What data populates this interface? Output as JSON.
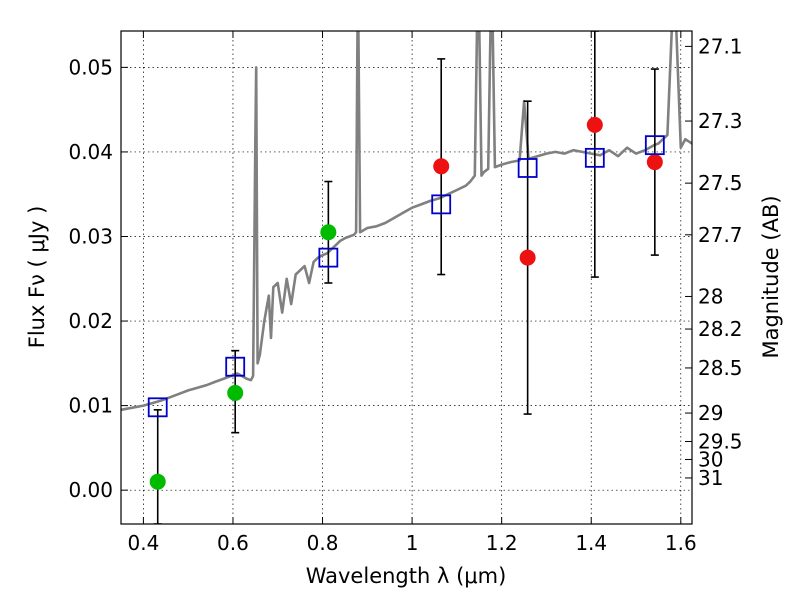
{
  "chart_data": {
    "type": "scatter",
    "xlabel": "Wavelength  λ (μm)",
    "ylabel": "Flux  Fν  ( μJy )",
    "y2label": "Magnitude (AB)",
    "xlim": [
      0.35,
      1.625
    ],
    "ylim": [
      -0.004,
      0.0543
    ],
    "grid": true,
    "x_ticks": [
      {
        "v": 0.4,
        "label": "0.4"
      },
      {
        "v": 0.6,
        "label": "0.6"
      },
      {
        "v": 0.8,
        "label": "0.8"
      },
      {
        "v": 1.0,
        "label": "1"
      },
      {
        "v": 1.2,
        "label": "1.2"
      },
      {
        "v": 1.4,
        "label": "1.4"
      },
      {
        "v": 1.6,
        "label": "1.6"
      }
    ],
    "y_ticks": [
      {
        "v": 0.0,
        "label": "0.00"
      },
      {
        "v": 0.01,
        "label": "0.01"
      },
      {
        "v": 0.02,
        "label": "0.02"
      },
      {
        "v": 0.03,
        "label": "0.03"
      },
      {
        "v": 0.04,
        "label": "0.04"
      },
      {
        "v": 0.05,
        "label": "0.05"
      }
    ],
    "mag_ticks": [
      {
        "mag": 27.1,
        "label": "27.1"
      },
      {
        "mag": 27.3,
        "label": "27.3"
      },
      {
        "mag": 27.5,
        "label": "27.5"
      },
      {
        "mag": 27.7,
        "label": "27.7"
      },
      {
        "mag": 28.0,
        "label": "28"
      },
      {
        "mag": 28.2,
        "label": "28.2"
      },
      {
        "mag": 28.5,
        "label": "28.5"
      },
      {
        "mag": 29.0,
        "label": "29"
      },
      {
        "mag": 29.5,
        "label": "29.5"
      },
      {
        "mag": 30.0,
        "label": "30"
      },
      {
        "mag": 31.0,
        "label": "31"
      }
    ],
    "series": [
      {
        "kind": "spectrum",
        "color": "#808080",
        "points": [
          [
            0.35,
            0.0095
          ],
          [
            0.38,
            0.0098
          ],
          [
            0.4,
            0.01
          ],
          [
            0.42,
            0.0103
          ],
          [
            0.44,
            0.0106
          ],
          [
            0.46,
            0.011
          ],
          [
            0.48,
            0.0114
          ],
          [
            0.5,
            0.0118
          ],
          [
            0.52,
            0.0121
          ],
          [
            0.54,
            0.0124
          ],
          [
            0.56,
            0.0128
          ],
          [
            0.58,
            0.0132
          ],
          [
            0.6,
            0.0136
          ],
          [
            0.61,
            0.0138
          ],
          [
            0.62,
            0.0135
          ],
          [
            0.63,
            0.0132
          ],
          [
            0.64,
            0.013
          ],
          [
            0.645,
            0.0135
          ],
          [
            0.65,
            0.042
          ],
          [
            0.652,
            0.05
          ],
          [
            0.655,
            0.015
          ],
          [
            0.66,
            0.016
          ],
          [
            0.67,
            0.02
          ],
          [
            0.68,
            0.023
          ],
          [
            0.685,
            0.018
          ],
          [
            0.69,
            0.024
          ],
          [
            0.7,
            0.0245
          ],
          [
            0.71,
            0.021
          ],
          [
            0.72,
            0.025
          ],
          [
            0.73,
            0.022
          ],
          [
            0.74,
            0.0255
          ],
          [
            0.75,
            0.026
          ],
          [
            0.76,
            0.0265
          ],
          [
            0.77,
            0.0245
          ],
          [
            0.78,
            0.027
          ],
          [
            0.79,
            0.0275
          ],
          [
            0.8,
            0.0278
          ],
          [
            0.81,
            0.028
          ],
          [
            0.82,
            0.0285
          ],
          [
            0.83,
            0.029
          ],
          [
            0.84,
            0.0295
          ],
          [
            0.85,
            0.0298
          ],
          [
            0.86,
            0.03
          ],
          [
            0.87,
            0.0302
          ],
          [
            0.875,
            0.0305
          ],
          [
            0.878,
            0.0545
          ],
          [
            0.88,
            0.0545
          ],
          [
            0.884,
            0.0305
          ],
          [
            0.9,
            0.031
          ],
          [
            0.92,
            0.0312
          ],
          [
            0.94,
            0.0316
          ],
          [
            0.96,
            0.0322
          ],
          [
            0.98,
            0.0328
          ],
          [
            1.0,
            0.0334
          ],
          [
            1.02,
            0.0338
          ],
          [
            1.04,
            0.0342
          ],
          [
            1.06,
            0.0345
          ],
          [
            1.08,
            0.035
          ],
          [
            1.1,
            0.0355
          ],
          [
            1.12,
            0.036
          ],
          [
            1.13,
            0.0365
          ],
          [
            1.14,
            0.0372
          ],
          [
            1.145,
            0.0545
          ],
          [
            1.15,
            0.0545
          ],
          [
            1.155,
            0.0372
          ],
          [
            1.16,
            0.0376
          ],
          [
            1.17,
            0.038
          ],
          [
            1.175,
            0.0545
          ],
          [
            1.18,
            0.0545
          ],
          [
            1.185,
            0.0382
          ],
          [
            1.2,
            0.0385
          ],
          [
            1.22,
            0.0388
          ],
          [
            1.24,
            0.039
          ],
          [
            1.25,
            0.046
          ],
          [
            1.26,
            0.0392
          ],
          [
            1.28,
            0.0395
          ],
          [
            1.3,
            0.0398
          ],
          [
            1.32,
            0.04
          ],
          [
            1.34,
            0.0398
          ],
          [
            1.36,
            0.0402
          ],
          [
            1.38,
            0.04
          ],
          [
            1.4,
            0.0398
          ],
          [
            1.42,
            0.0396
          ],
          [
            1.44,
            0.0402
          ],
          [
            1.46,
            0.0395
          ],
          [
            1.48,
            0.0405
          ],
          [
            1.5,
            0.0398
          ],
          [
            1.52,
            0.0402
          ],
          [
            1.54,
            0.0408
          ],
          [
            1.55,
            0.041
          ],
          [
            1.56,
            0.0415
          ],
          [
            1.57,
            0.042
          ],
          [
            1.58,
            0.0545
          ],
          [
            1.59,
            0.0545
          ],
          [
            1.6,
            0.0405
          ],
          [
            1.61,
            0.0415
          ],
          [
            1.625,
            0.041
          ]
        ]
      },
      {
        "kind": "errorbars",
        "color": "#000000",
        "points": [
          {
            "x": 0.432,
            "lo": -0.004,
            "hi": 0.0095
          },
          {
            "x": 0.605,
            "lo": 0.0068,
            "hi": 0.0165
          },
          {
            "x": 0.813,
            "lo": 0.0245,
            "hi": 0.0365
          },
          {
            "x": 1.065,
            "lo": 0.0255,
            "hi": 0.051
          },
          {
            "x": 1.258,
            "lo": 0.009,
            "hi": 0.046
          },
          {
            "x": 1.408,
            "lo": 0.0252,
            "hi": 0.0543
          },
          {
            "x": 1.542,
            "lo": 0.0278,
            "hi": 0.0498
          }
        ]
      },
      {
        "kind": "observed-green",
        "color": "#00bb00",
        "points": [
          [
            0.432,
            0.001
          ],
          [
            0.605,
            0.0115
          ],
          [
            0.813,
            0.0305
          ]
        ]
      },
      {
        "kind": "observed-red",
        "color": "#ee1111",
        "points": [
          [
            1.065,
            0.0383
          ],
          [
            1.258,
            0.0275
          ],
          [
            1.408,
            0.0432
          ],
          [
            1.542,
            0.0388
          ]
        ]
      },
      {
        "kind": "model-squares",
        "color": "#0000cc",
        "points": [
          [
            0.432,
            0.0098
          ],
          [
            0.605,
            0.0146
          ],
          [
            0.813,
            0.0275
          ],
          [
            1.065,
            0.0338
          ],
          [
            1.258,
            0.0381
          ],
          [
            1.408,
            0.0393
          ],
          [
            1.542,
            0.0408
          ]
        ]
      }
    ]
  }
}
